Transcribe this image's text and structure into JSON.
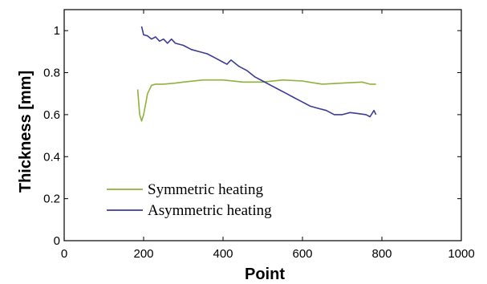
{
  "chart_data": {
    "type": "line",
    "xlabel": "Point",
    "ylabel": "Thickness [mm]",
    "xlim": [
      0,
      1000
    ],
    "ylim": [
      0,
      1.1
    ],
    "xticks": [
      0,
      200,
      400,
      600,
      800,
      1000
    ],
    "yticks": [
      0,
      0.2,
      0.4,
      0.6,
      0.8,
      1
    ],
    "grid": false,
    "legend_position": "lower-left",
    "series": [
      {
        "name": "Symmetric heating",
        "color": "#8db33a",
        "x": [
          185,
          190,
          195,
          200,
          205,
          210,
          220,
          230,
          250,
          280,
          300,
          350,
          400,
          450,
          500,
          550,
          600,
          650,
          700,
          750,
          770,
          785
        ],
        "y": [
          0.72,
          0.6,
          0.57,
          0.6,
          0.65,
          0.7,
          0.74,
          0.745,
          0.745,
          0.75,
          0.755,
          0.765,
          0.765,
          0.755,
          0.755,
          0.765,
          0.76,
          0.745,
          0.75,
          0.755,
          0.745,
          0.745
        ]
      },
      {
        "name": "Asymmetric heating",
        "color": "#3c3c96",
        "x": [
          195,
          200,
          210,
          220,
          230,
          240,
          250,
          260,
          270,
          280,
          300,
          320,
          340,
          360,
          380,
          400,
          410,
          420,
          440,
          460,
          480,
          500,
          520,
          540,
          560,
          580,
          600,
          620,
          640,
          660,
          680,
          700,
          720,
          740,
          760,
          770,
          780,
          785
        ],
        "y": [
          1.02,
          0.98,
          0.975,
          0.96,
          0.97,
          0.95,
          0.96,
          0.94,
          0.96,
          0.94,
          0.93,
          0.91,
          0.9,
          0.89,
          0.87,
          0.85,
          0.84,
          0.86,
          0.83,
          0.81,
          0.78,
          0.76,
          0.74,
          0.72,
          0.7,
          0.68,
          0.66,
          0.64,
          0.63,
          0.62,
          0.6,
          0.6,
          0.61,
          0.605,
          0.6,
          0.59,
          0.62,
          0.6
        ]
      }
    ]
  }
}
